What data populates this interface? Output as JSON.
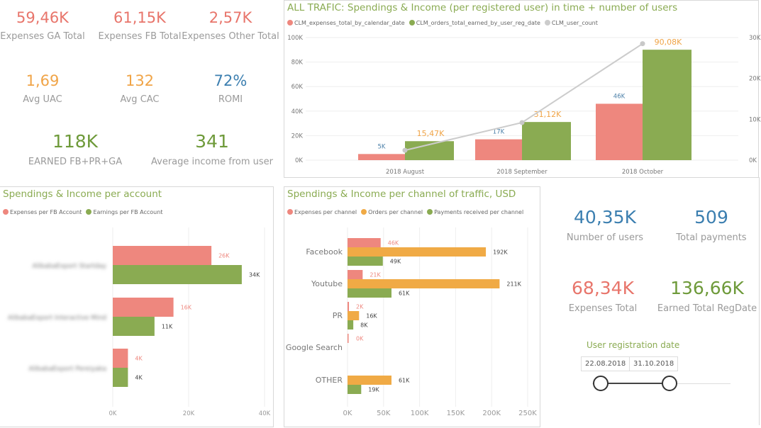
{
  "kpis_top": [
    {
      "value": "59,46K",
      "label": "Expenses GA Total",
      "color": "#e8756b"
    },
    {
      "value": "61,15K",
      "label": "Expenses FB Total",
      "color": "#e8756b"
    },
    {
      "value": "2,57K",
      "label": "Expenses Other Total",
      "color": "#e8756b"
    },
    {
      "value": "1,69",
      "label": "Avg UAC",
      "color": "#f0a447"
    },
    {
      "value": "132",
      "label": "Avg CAC",
      "color": "#f0a447"
    },
    {
      "value": "72%",
      "label": "ROMI",
      "color": "#3c7fb0"
    },
    {
      "value": "118K",
      "label": "EARNED FB+PR+GA",
      "color": "#6e9a3a"
    },
    {
      "value": "341",
      "label": "Average income from user",
      "color": "#6e9a3a"
    }
  ],
  "kpis_right": [
    {
      "value": "40,35K",
      "label": "Number of users",
      "color": "#3c7fb0"
    },
    {
      "value": "509",
      "label": "Total payments",
      "color": "#3c7fb0"
    },
    {
      "value": "68,34K",
      "label": "Expenses Total",
      "color": "#e8756b"
    },
    {
      "value": "136,66K",
      "label": "Earned Total RegDate",
      "color": "#6e9a3a"
    }
  ],
  "slicer": {
    "title": "User registration date",
    "start": "22.08.2018",
    "end": "31.10.2018",
    "range_fraction": [
      0,
      1
    ]
  },
  "colors": {
    "red": "#ee877e",
    "green": "#8aab52",
    "orange": "#f0aa45",
    "gray": "#cccccc",
    "title": "#8aab52"
  },
  "chart_data": [
    {
      "type": "bar+line",
      "title": "ALL TRAFIC: Spendings & Income (per registered user) in time + number of users",
      "categories": [
        "2018 August",
        "2018 September",
        "2018 October"
      ],
      "series": [
        {
          "name": "CLM_expenses_total_by_calendar_date",
          "values": [
            5000,
            17000,
            46000
          ],
          "labels": [
            "5K",
            "17K",
            "46K"
          ],
          "color": "#ee877e"
        },
        {
          "name": "CLM_orders_total_earned_by_user_reg_date",
          "values": [
            15470,
            31120,
            90080
          ],
          "labels": [
            "15,47K",
            "31,12K",
            "90,08K"
          ],
          "color": "#8aab52"
        },
        {
          "name": "CLM_user_count",
          "values": [
            2400,
            9200,
            28500
          ],
          "axis": "right",
          "color": "#cccccc"
        }
      ],
      "ylim": [
        0,
        100000
      ],
      "yticks": [
        "0K",
        "20K",
        "40K",
        "60K",
        "80K",
        "100K"
      ],
      "y2lim": [
        0,
        30000
      ],
      "y2ticks": [
        "0K",
        "10K",
        "20K",
        "30K"
      ],
      "grid": true,
      "legend": "top-left"
    },
    {
      "type": "hbar",
      "title": "Spendings & Income per account",
      "categories": [
        "AlibabaExport Startday",
        "AlibabaExport Interactive Mind",
        "AlibabaExport Pereiyaka"
      ],
      "series": [
        {
          "name": "Expenses per FB Account",
          "values": [
            26000,
            16000,
            4000
          ],
          "labels": [
            "26K",
            "16K",
            "4K"
          ],
          "color": "#ee877e"
        },
        {
          "name": "Earnings per FB Account",
          "values": [
            34000,
            11000,
            4000
          ],
          "labels": [
            "34K",
            "11K",
            "4K"
          ],
          "color": "#8aab52"
        }
      ],
      "xlim": [
        0,
        40000
      ],
      "xticks": [
        "0K",
        "20K",
        "40K"
      ],
      "grid": true,
      "legend": "top-left"
    },
    {
      "type": "hbar",
      "title": "Spendings & Income per channel of traffic, USD",
      "categories": [
        "Facebook",
        "Youtube",
        "PR",
        "Google Search",
        "OTHER"
      ],
      "series": [
        {
          "name": "Expenses per channel",
          "values": [
            46000,
            21000,
            2000,
            0,
            null
          ],
          "labels": [
            "46K",
            "21K",
            "2K",
            "0K",
            null
          ],
          "color": "#ee877e"
        },
        {
          "name": "Orders per channel",
          "values": [
            192000,
            211000,
            16000,
            null,
            61000
          ],
          "labels": [
            "192K",
            "211K",
            "16K",
            null,
            "61K"
          ],
          "color": "#f0aa45"
        },
        {
          "name": "Payments received per channel",
          "values": [
            49000,
            61000,
            8000,
            null,
            19000
          ],
          "labels": [
            "49K",
            "61K",
            "8K",
            null,
            "19K"
          ],
          "color": "#8aab52"
        }
      ],
      "xlim": [
        0,
        250000
      ],
      "xticks": [
        "0K",
        "50K",
        "100K",
        "150K",
        "200K",
        "250K"
      ],
      "grid": true,
      "legend": "top-left"
    }
  ]
}
